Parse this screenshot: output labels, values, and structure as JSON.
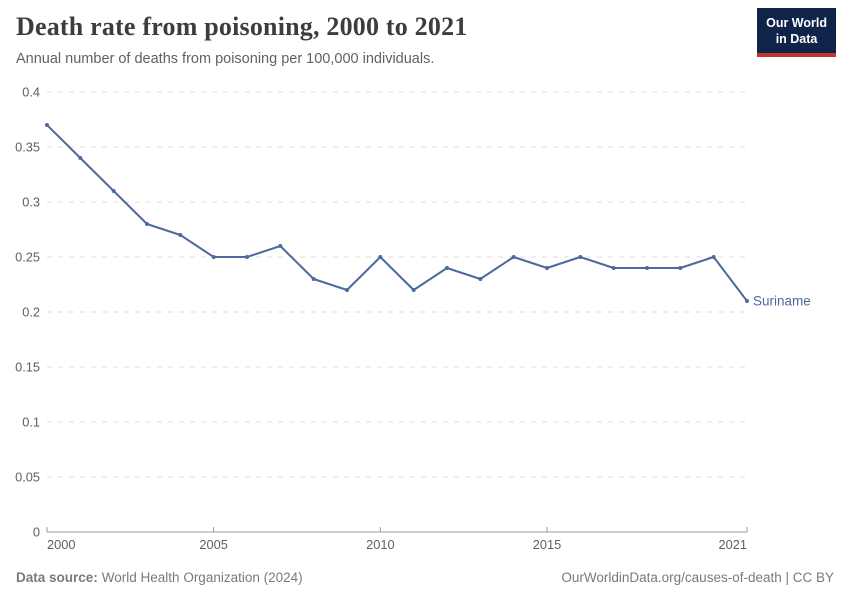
{
  "header": {
    "title": "Death rate from poisoning, 2000 to 2021",
    "subtitle": "Annual number of deaths from poisoning per 100,000 individuals.",
    "logo": {
      "line1": "Our World",
      "line2": "in Data",
      "bg_color": "#0f2448",
      "accent_color": "#c5332a"
    }
  },
  "footer": {
    "source_label": "Data source:",
    "source_value": "World Health Organization (2024)",
    "credit": "OurWorldinData.org/causes-of-death | CC BY"
  },
  "chart_data": {
    "type": "line",
    "title": "Death rate from poisoning, 2000 to 2021",
    "subtitle": "Annual number of deaths from poisoning per 100,000 individuals.",
    "xlabel": "",
    "ylabel": "",
    "x": [
      2000,
      2001,
      2002,
      2003,
      2004,
      2005,
      2006,
      2007,
      2008,
      2009,
      2010,
      2011,
      2012,
      2013,
      2014,
      2015,
      2016,
      2017,
      2018,
      2019,
      2020,
      2021
    ],
    "series": [
      {
        "name": "Suriname",
        "color": "#4c6a9c",
        "values": [
          0.37,
          0.34,
          0.31,
          0.28,
          0.27,
          0.25,
          0.25,
          0.26,
          0.23,
          0.22,
          0.25,
          0.22,
          0.24,
          0.23,
          0.25,
          0.24,
          0.25,
          0.24,
          0.24,
          0.24,
          0.25,
          0.21
        ]
      }
    ],
    "xlim": [
      2000,
      2021
    ],
    "ylim": [
      0,
      0.4
    ],
    "xticks": [
      2000,
      2005,
      2010,
      2015,
      2021
    ],
    "yticks": [
      0,
      0.05,
      0.1,
      0.15,
      0.2,
      0.25,
      0.3,
      0.35,
      0.4
    ],
    "grid": "horizontal-dashed",
    "legend": "end-of-line-label",
    "tick_color": "#5f5f5f",
    "grid_color": "#dedede",
    "axis_color": "#9e9e9e"
  }
}
